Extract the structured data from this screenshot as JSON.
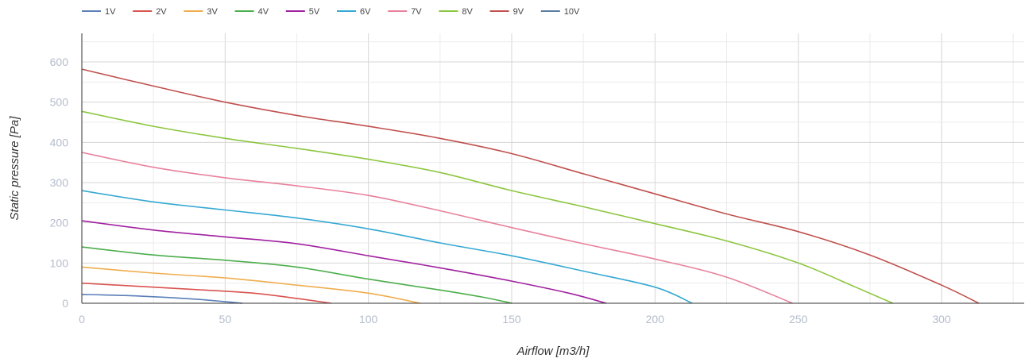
{
  "chart_data": {
    "type": "line",
    "xlabel": "Airflow [m3/h]",
    "ylabel": "Static pressure [Pa]",
    "xlim": [
      0,
      330
    ],
    "ylim": [
      0,
      660
    ],
    "xticks": [
      0,
      50,
      100,
      150,
      200,
      250,
      300
    ],
    "yticks": [
      0,
      100,
      200,
      300,
      400,
      500,
      600
    ],
    "grid": true,
    "legend_position": "top-left",
    "series": [
      {
        "name": "1V",
        "color": "#5b7fb8",
        "points": [
          [
            0,
            22
          ],
          [
            20,
            18
          ],
          [
            40,
            10
          ],
          [
            56,
            0
          ]
        ]
      },
      {
        "name": "2V",
        "color": "#d9534f",
        "points": [
          [
            0,
            50
          ],
          [
            20,
            42
          ],
          [
            40,
            34
          ],
          [
            60,
            25
          ],
          [
            75,
            12
          ],
          [
            87,
            0
          ]
        ]
      },
      {
        "name": "3V",
        "color": "#f0ad4e",
        "points": [
          [
            0,
            90
          ],
          [
            25,
            75
          ],
          [
            50,
            63
          ],
          [
            75,
            45
          ],
          [
            100,
            25
          ],
          [
            118,
            0
          ]
        ]
      },
      {
        "name": "4V",
        "color": "#4cae4c",
        "points": [
          [
            0,
            140
          ],
          [
            25,
            120
          ],
          [
            50,
            107
          ],
          [
            75,
            90
          ],
          [
            100,
            60
          ],
          [
            125,
            33
          ],
          [
            140,
            15
          ],
          [
            150,
            0
          ]
        ]
      },
      {
        "name": "5V",
        "color": "#a020a0",
        "points": [
          [
            0,
            205
          ],
          [
            25,
            182
          ],
          [
            50,
            165
          ],
          [
            75,
            148
          ],
          [
            100,
            118
          ],
          [
            125,
            88
          ],
          [
            150,
            55
          ],
          [
            170,
            25
          ],
          [
            183,
            0
          ]
        ]
      },
      {
        "name": "6V",
        "color": "#35a8d3",
        "points": [
          [
            0,
            280
          ],
          [
            25,
            252
          ],
          [
            50,
            232
          ],
          [
            75,
            212
          ],
          [
            100,
            185
          ],
          [
            125,
            150
          ],
          [
            150,
            118
          ],
          [
            175,
            80
          ],
          [
            200,
            40
          ],
          [
            213,
            0
          ]
        ]
      },
      {
        "name": "7V",
        "color": "#e8819b",
        "points": [
          [
            0,
            375
          ],
          [
            25,
            338
          ],
          [
            50,
            312
          ],
          [
            75,
            292
          ],
          [
            100,
            268
          ],
          [
            125,
            230
          ],
          [
            150,
            188
          ],
          [
            175,
            148
          ],
          [
            200,
            110
          ],
          [
            225,
            65
          ],
          [
            248,
            0
          ]
        ]
      },
      {
        "name": "8V",
        "color": "#8cc63f",
        "points": [
          [
            0,
            477
          ],
          [
            25,
            440
          ],
          [
            50,
            410
          ],
          [
            75,
            385
          ],
          [
            100,
            358
          ],
          [
            125,
            325
          ],
          [
            150,
            280
          ],
          [
            175,
            240
          ],
          [
            200,
            198
          ],
          [
            225,
            155
          ],
          [
            250,
            100
          ],
          [
            270,
            40
          ],
          [
            283,
            0
          ]
        ]
      },
      {
        "name": "9V",
        "color": "#c0504d",
        "points": [
          [
            0,
            582
          ],
          [
            25,
            540
          ],
          [
            50,
            500
          ],
          [
            75,
            467
          ],
          [
            100,
            440
          ],
          [
            125,
            410
          ],
          [
            150,
            372
          ],
          [
            175,
            322
          ],
          [
            200,
            272
          ],
          [
            225,
            222
          ],
          [
            250,
            178
          ],
          [
            275,
            120
          ],
          [
            300,
            45
          ],
          [
            313,
            0
          ]
        ]
      },
      {
        "name": "10V",
        "color": "#5a7ba3",
        "points": []
      }
    ]
  }
}
